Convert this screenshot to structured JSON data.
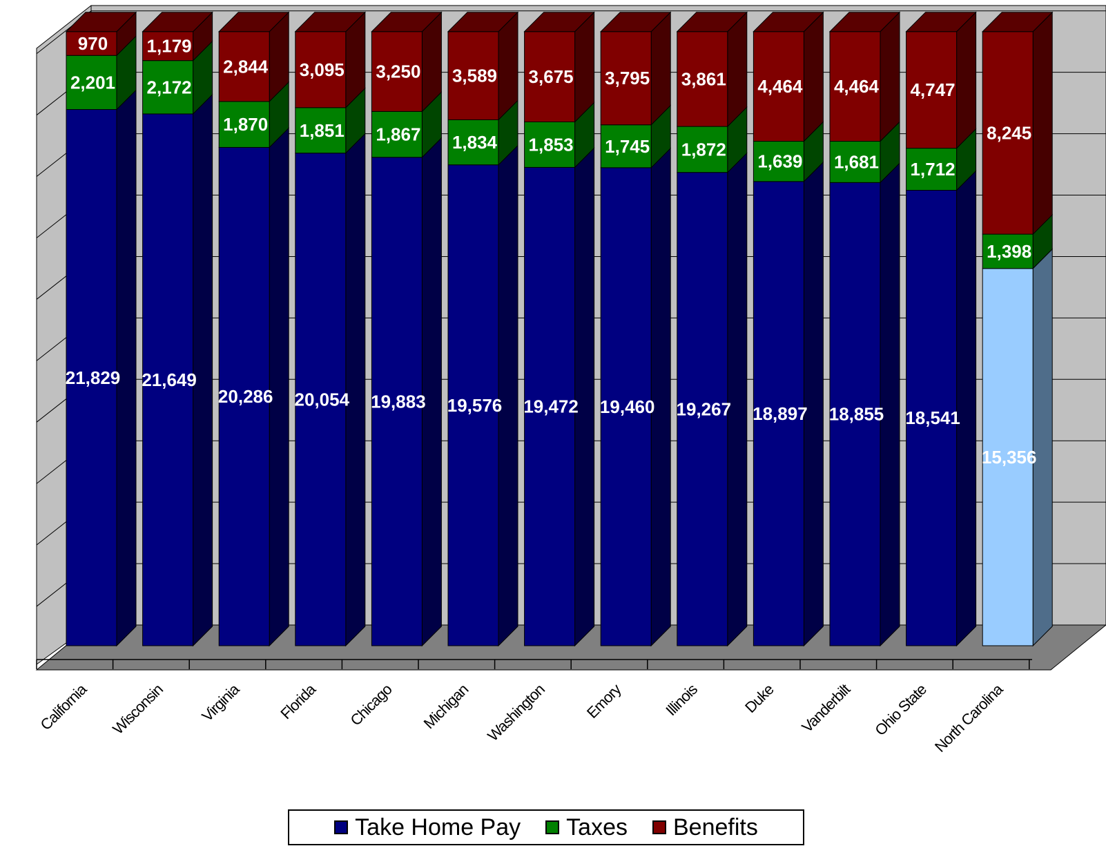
{
  "chart_data": {
    "type": "bar",
    "stacked": true,
    "three_d": true,
    "categories": [
      "California",
      "Wisconsin",
      "Virginia",
      "Florida",
      "Chicago",
      "Michigan",
      "Washington",
      "Emory",
      "Illinois",
      "Duke",
      "Vanderbilt",
      "Ohio State",
      "North Carolina"
    ],
    "series": [
      {
        "name": "Take Home Pay",
        "color": "#000080",
        "values": [
          21829,
          21649,
          20286,
          20054,
          19883,
          19576,
          19472,
          19460,
          19267,
          18897,
          18855,
          18541,
          15356
        ]
      },
      {
        "name": "Taxes",
        "color": "#008000",
        "values": [
          2201,
          2172,
          1870,
          1851,
          1867,
          1834,
          1853,
          1745,
          1872,
          1639,
          1681,
          1712,
          1398
        ]
      },
      {
        "name": "Benefits",
        "color": "#800000",
        "values": [
          970,
          1179,
          2844,
          3095,
          3250,
          3589,
          3675,
          3795,
          3861,
          4464,
          4464,
          4747,
          8245
        ]
      }
    ],
    "value_labels": {
      "Take Home Pay": [
        "21,829",
        "21,649",
        "20,286",
        "20,054",
        "19,883",
        "19,576",
        "19,472",
        "19,460",
        "19,267",
        "18,897",
        "18,855",
        "18,541",
        "15,356"
      ],
      "Taxes": [
        "2,201",
        "2,172",
        "1,870",
        "1,851",
        "1,867",
        "1,834",
        "1,853",
        "1,745",
        "1,872",
        "1,639",
        "1,681",
        "1,712",
        "1,398"
      ],
      "Benefits": [
        "970",
        "1,179",
        "2,844",
        "3,095",
        "3,250",
        "3,589",
        "3,675",
        "3,795",
        "3,861",
        "4,464",
        "4,464",
        "4,747",
        "8,245"
      ]
    },
    "highlight": {
      "category": "North Carolina",
      "take_home_color": "#99CCFF"
    },
    "ylim": [
      0,
      25000
    ],
    "grid": true,
    "legend_position": "bottom",
    "title": "",
    "xlabel": "",
    "ylabel": ""
  }
}
